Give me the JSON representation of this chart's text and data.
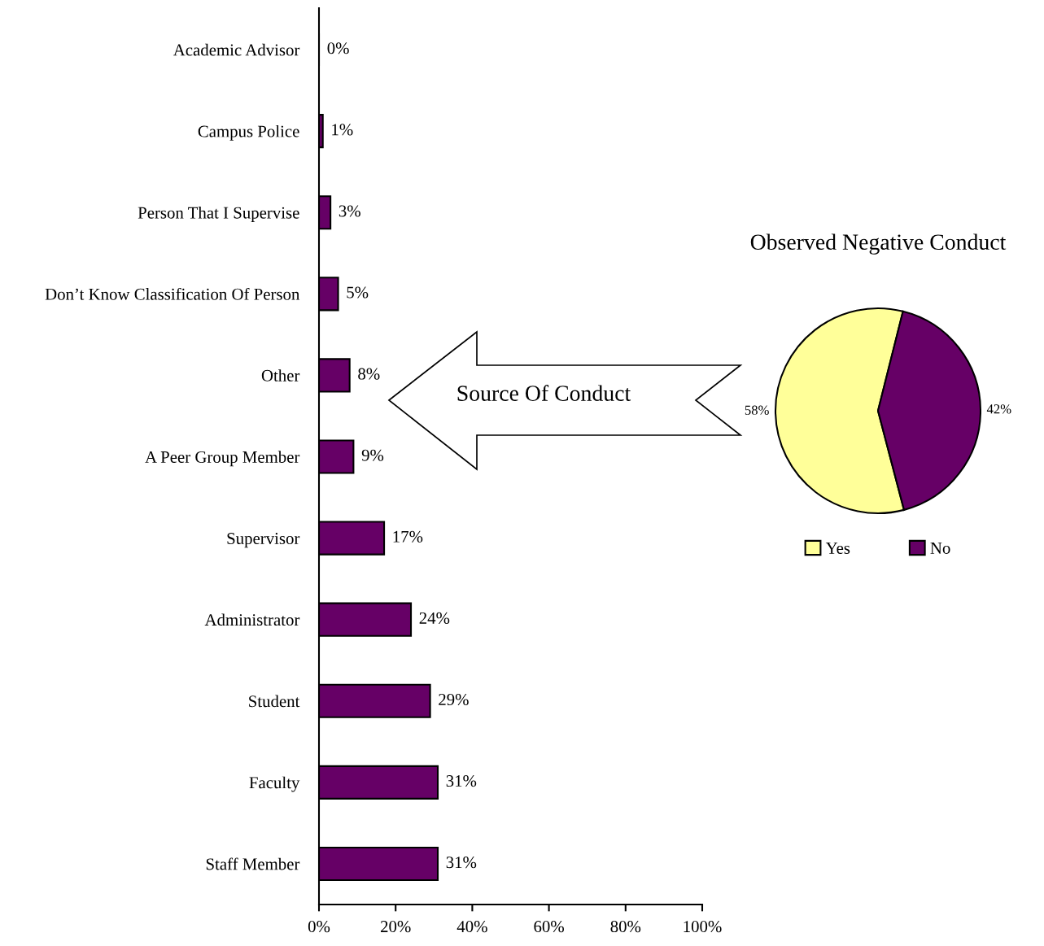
{
  "chart_data": [
    {
      "type": "bar",
      "orientation": "horizontal",
      "categories": [
        "Academic Advisor",
        "Campus Police",
        "Person That I Supervise",
        "Don’t Know Classification Of Person",
        "Other",
        "A Peer Group Member",
        "Supervisor",
        "Administrator",
        "Student",
        "Faculty",
        "Staff Member"
      ],
      "values": [
        0,
        1,
        3,
        5,
        8,
        9,
        17,
        24,
        29,
        31,
        31
      ],
      "color": "#660066",
      "value_labels": [
        "0%",
        "1%",
        "3%",
        "5%",
        "8%",
        "9%",
        "17%",
        "24%",
        "29%",
        "31%",
        "31%"
      ],
      "xlim": [
        0,
        100
      ],
      "xticks": [
        {
          "value": 0,
          "label": "0%"
        },
        {
          "value": 20,
          "label": "20%"
        },
        {
          "value": 40,
          "label": "40%"
        },
        {
          "value": 60,
          "label": "60%"
        },
        {
          "value": 80,
          "label": "80%"
        },
        {
          "value": 100,
          "label": "100%"
        }
      ],
      "annotations": [
        "Source Of Conduct"
      ]
    },
    {
      "type": "pie",
      "title": "Observed Negative Conduct",
      "categories": [
        "Yes",
        "No"
      ],
      "values": [
        58,
        42
      ],
      "colors": [
        "#ffff99",
        "#660066"
      ],
      "value_labels": [
        "58%",
        "42%"
      ],
      "legend": "bottom"
    }
  ]
}
